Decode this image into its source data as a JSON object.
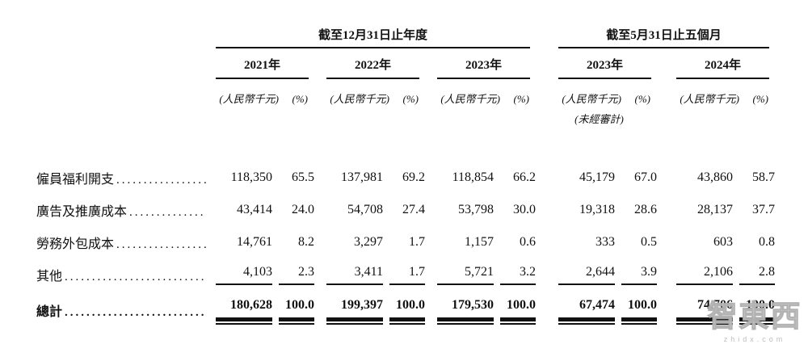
{
  "table": {
    "period_groups": [
      {
        "label": "截至12月31日止年度"
      },
      {
        "label": "截至5月31日止五個月"
      }
    ],
    "year_columns": [
      {
        "year": "2021年",
        "unit": "(人民幣千元)",
        "pct": "(%)"
      },
      {
        "year": "2022年",
        "unit": "(人民幣千元)",
        "pct": "(%)"
      },
      {
        "year": "2023年",
        "unit": "(人民幣千元)",
        "pct": "(%)"
      },
      {
        "year": "2023年",
        "unit": "(人民幣千元)",
        "pct": "(%)",
        "note": "(未經審計)"
      },
      {
        "year": "2024年",
        "unit": "(人民幣千元)",
        "pct": "(%)"
      }
    ],
    "leader_dots": "......................................................................",
    "rows": [
      {
        "label": "僱員福利開支",
        "values": [
          "118,350",
          "65.5",
          "137,981",
          "69.2",
          "118,854",
          "66.2",
          "45,179",
          "67.0",
          "43,860",
          "58.7"
        ]
      },
      {
        "label": "廣告及推廣成本",
        "values": [
          "43,414",
          "24.0",
          "54,708",
          "27.4",
          "53,798",
          "30.0",
          "19,318",
          "28.6",
          "28,137",
          "37.7"
        ]
      },
      {
        "label": "勞務外包成本",
        "values": [
          "14,761",
          "8.2",
          "3,297",
          "1.7",
          "1,157",
          "0.6",
          "333",
          "0.5",
          "603",
          "0.8"
        ]
      },
      {
        "label": "其他",
        "values": [
          "4,103",
          "2.3",
          "3,411",
          "1.7",
          "5,721",
          "3.2",
          "2,644",
          "3.9",
          "2,106",
          "2.8"
        ]
      }
    ],
    "total_row": {
      "label": "總計",
      "values": [
        "180,628",
        "100.0",
        "199,397",
        "100.0",
        "179,530",
        "100.0",
        "67,474",
        "100.0",
        "74,706",
        "100.0"
      ]
    }
  },
  "watermark": {
    "logo": "智東西",
    "domain": "zhidx.com"
  }
}
